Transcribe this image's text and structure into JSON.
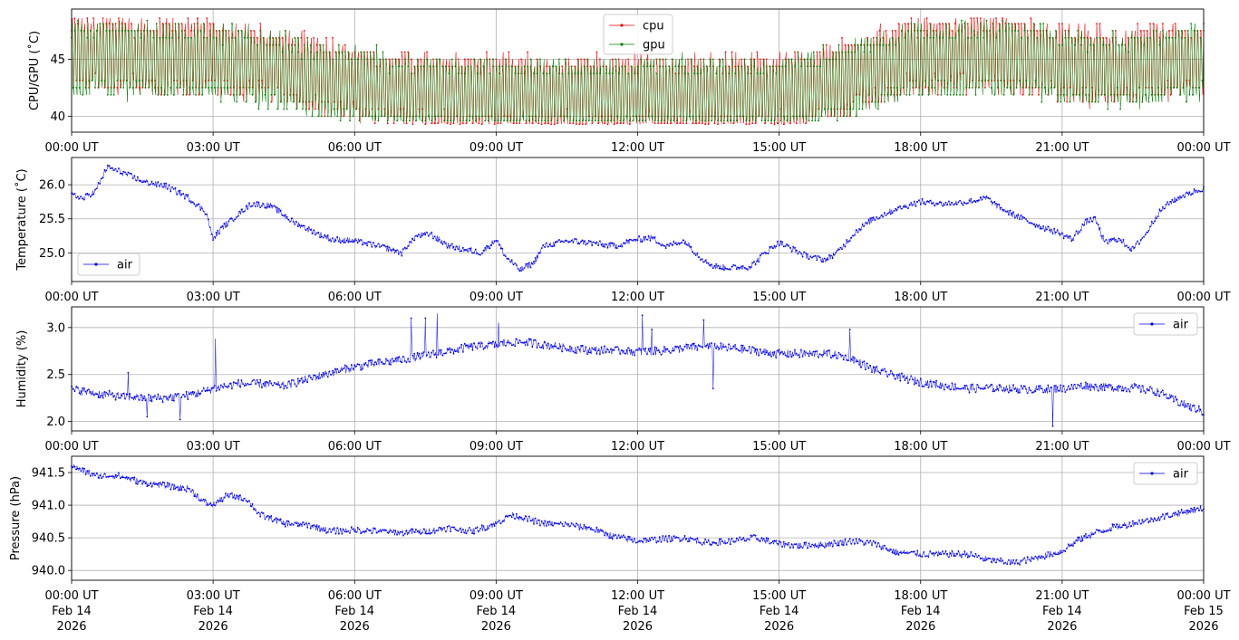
{
  "chart_data": [
    {
      "type": "line",
      "ylabel": "CPU/GPU (˚C)",
      "xlim": [
        "00:00 UT",
        "00:00 UT"
      ],
      "ylim": [
        38.6,
        49.4
      ],
      "yticks": [
        40,
        45
      ],
      "xticks": [
        "00:00 UT",
        "03:00 UT",
        "06:00 UT",
        "09:00 UT",
        "12:00 UT",
        "15:00 UT",
        "18:00 UT",
        "21:00 UT",
        "00:00 UT"
      ],
      "grid": true,
      "legend": "upper center",
      "series": [
        {
          "name": "cpu",
          "color": "#ff0000",
          "x_hours": [
            0,
            1,
            2,
            3,
            4,
            5,
            6,
            7,
            8,
            9,
            10,
            11,
            12,
            13,
            14,
            15,
            16,
            17,
            18,
            19,
            20,
            21,
            22,
            23,
            24
          ],
          "y_mean": [
            45.2,
            45.3,
            45.0,
            45.1,
            44.6,
            43.6,
            42.8,
            42.2,
            42.0,
            41.8,
            41.9,
            41.9,
            42.0,
            42.0,
            41.9,
            41.9,
            42.6,
            44.2,
            45.2,
            45.4,
            45.2,
            44.6,
            44.0,
            44.6,
            45.2
          ],
          "y_max": 48.6,
          "y_min": 39.3
        },
        {
          "name": "gpu",
          "color": "#008000",
          "x_hours": [
            0,
            1,
            2,
            3,
            4,
            5,
            6,
            7,
            8,
            9,
            10,
            11,
            12,
            13,
            14,
            15,
            16,
            17,
            18,
            19,
            20,
            21,
            22,
            23,
            24
          ],
          "y_mean": [
            45.0,
            45.0,
            44.8,
            44.8,
            44.3,
            43.4,
            42.7,
            42.1,
            41.9,
            41.7,
            41.8,
            41.8,
            41.9,
            41.9,
            41.8,
            41.8,
            42.5,
            44.0,
            44.9,
            45.1,
            45.0,
            44.4,
            43.9,
            44.4,
            45.0
          ],
          "y_max": 48.4,
          "y_min": 39.6
        }
      ]
    },
    {
      "type": "line",
      "ylabel": "Temperature (˚C)",
      "ylim": [
        24.58,
        26.4
      ],
      "yticks": [
        "25.0",
        "25.5",
        "26.0"
      ],
      "xticks": [
        "00:00 UT",
        "03:00 UT",
        "06:00 UT",
        "09:00 UT",
        "12:00 UT",
        "15:00 UT",
        "18:00 UT",
        "21:00 UT",
        "00:00 UT"
      ],
      "grid": true,
      "legend": "lower left",
      "series": [
        {
          "name": "air",
          "color": "#0000ff",
          "x_hours": [
            0,
            0.25,
            0.5,
            0.75,
            1,
            1.5,
            2,
            2.5,
            2.85,
            3.0,
            3.2,
            3.5,
            3.8,
            4.2,
            4.6,
            5,
            5.5,
            6,
            6.5,
            7,
            7.3,
            7.6,
            8,
            8.3,
            8.7,
            9,
            9.2,
            9.5,
            9.8,
            10,
            10.5,
            11,
            11.5,
            12,
            12.3,
            12.6,
            13,
            13.3,
            13.6,
            14,
            14.4,
            14.7,
            15,
            15.3,
            15.6,
            16,
            16.3,
            16.6,
            17,
            17.5,
            18,
            18.5,
            19,
            19.4,
            19.7,
            20,
            20.5,
            20.9,
            21.2,
            21.5,
            21.7,
            21.9,
            22.2,
            22.5,
            22.8,
            23.0,
            23.3,
            23.6,
            24
          ],
          "y": [
            25.85,
            25.8,
            25.9,
            26.25,
            26.2,
            26.05,
            25.98,
            25.8,
            25.6,
            25.2,
            25.38,
            25.55,
            25.72,
            25.7,
            25.5,
            25.35,
            25.2,
            25.18,
            25.1,
            25.0,
            25.25,
            25.28,
            25.1,
            25.05,
            25.0,
            25.2,
            24.95,
            24.75,
            24.85,
            25.1,
            25.18,
            25.15,
            25.1,
            25.2,
            25.22,
            25.1,
            25.18,
            24.95,
            24.8,
            24.78,
            24.8,
            25.0,
            25.15,
            25.05,
            24.95,
            24.9,
            25.05,
            25.3,
            25.5,
            25.65,
            25.75,
            25.72,
            25.75,
            25.8,
            25.65,
            25.55,
            25.4,
            25.3,
            25.2,
            25.45,
            25.5,
            25.15,
            25.2,
            25.05,
            25.3,
            25.55,
            25.75,
            25.85,
            25.95
          ]
        }
      ]
    },
    {
      "type": "line",
      "ylabel": "Humidity (%)",
      "ylim": [
        1.9,
        3.22
      ],
      "yticks": [
        "2.0",
        "2.5",
        "3.0"
      ],
      "xticks": [
        "00:00 UT",
        "03:00 UT",
        "06:00 UT",
        "09:00 UT",
        "12:00 UT",
        "15:00 UT",
        "18:00 UT",
        "21:00 UT",
        "00:00 UT"
      ],
      "grid": true,
      "legend": "upper right",
      "series": [
        {
          "name": "air",
          "color": "#0000ff",
          "x_hours": [
            0,
            0.5,
            1,
            1.5,
            2,
            2.5,
            3,
            3.5,
            4,
            4.5,
            5,
            5.5,
            6,
            6.5,
            7,
            7.5,
            8,
            8.5,
            9,
            9.5,
            10,
            10.5,
            11,
            11.5,
            12,
            12.5,
            13,
            13.5,
            14,
            14.5,
            15,
            15.5,
            16,
            16.5,
            17,
            17.5,
            18,
            18.5,
            19,
            19.5,
            20,
            20.5,
            21,
            21.5,
            22,
            22.5,
            23,
            23.5,
            24
          ],
          "y": [
            2.34,
            2.3,
            2.27,
            2.25,
            2.25,
            2.28,
            2.35,
            2.4,
            2.4,
            2.38,
            2.45,
            2.52,
            2.58,
            2.62,
            2.66,
            2.7,
            2.75,
            2.8,
            2.82,
            2.85,
            2.82,
            2.78,
            2.76,
            2.76,
            2.74,
            2.75,
            2.78,
            2.8,
            2.78,
            2.75,
            2.72,
            2.72,
            2.72,
            2.68,
            2.55,
            2.48,
            2.42,
            2.38,
            2.35,
            2.36,
            2.35,
            2.34,
            2.35,
            2.38,
            2.36,
            2.36,
            2.32,
            2.2,
            2.1
          ],
          "spikes": [
            [
              1.2,
              2.52
            ],
            [
              1.6,
              2.05
            ],
            [
              2.3,
              2.02
            ],
            [
              3.05,
              2.88
            ],
            [
              7.2,
              3.1
            ],
            [
              7.5,
              3.1
            ],
            [
              7.75,
              3.15
            ],
            [
              9.05,
              3.05
            ],
            [
              12.1,
              3.13
            ],
            [
              12.3,
              2.98
            ],
            [
              13.4,
              3.08
            ],
            [
              13.6,
              2.35
            ],
            [
              16.5,
              2.98
            ],
            [
              20.8,
              1.95
            ]
          ]
        }
      ]
    },
    {
      "type": "line",
      "ylabel": "Pressure (hPa)",
      "ylim": [
        939.85,
        941.75
      ],
      "yticks": [
        "940.0",
        "940.5",
        "941.0",
        "941.5"
      ],
      "xticks": [
        "00:00 UT\nFeb 14\n2026",
        "03:00 UT\nFeb 14\n2026",
        "06:00 UT\nFeb 14\n2026",
        "09:00 UT\nFeb 14\n2026",
        "12:00 UT\nFeb 14\n2026",
        "15:00 UT\nFeb 14\n2026",
        "18:00 UT\nFeb 14\n2026",
        "21:00 UT\nFeb 14\n2026",
        "00:00 UT\nFeb 15\n2026"
      ],
      "grid": true,
      "legend": "upper right",
      "series": [
        {
          "name": "air",
          "color": "#0000ff",
          "x_hours": [
            0,
            0.5,
            1,
            1.5,
            2,
            2.5,
            2.8,
            3.0,
            3.3,
            3.7,
            4,
            4.5,
            5,
            5.5,
            6,
            6.5,
            7,
            7.5,
            8,
            8.5,
            9,
            9.3,
            9.6,
            10,
            10.5,
            11,
            11.5,
            12,
            12.5,
            13,
            13.5,
            14,
            14.5,
            15,
            15.5,
            16,
            16.5,
            17,
            17.5,
            18,
            18.5,
            19,
            19.5,
            20,
            20.5,
            21,
            21.3,
            21.6,
            22,
            22.5,
            23,
            23.5,
            24
          ],
          "y": [
            941.6,
            941.45,
            941.45,
            941.35,
            941.3,
            941.25,
            941.05,
            941.0,
            941.15,
            941.1,
            940.85,
            940.72,
            940.7,
            940.6,
            940.62,
            940.6,
            940.58,
            940.6,
            940.65,
            940.6,
            940.72,
            940.85,
            940.8,
            940.72,
            940.7,
            940.65,
            940.52,
            940.45,
            940.48,
            940.5,
            940.42,
            940.45,
            940.5,
            940.4,
            940.38,
            940.4,
            940.45,
            940.42,
            940.28,
            940.25,
            940.25,
            940.25,
            940.15,
            940.12,
            940.2,
            940.3,
            940.45,
            940.55,
            940.65,
            940.72,
            940.8,
            940.88,
            940.95
          ]
        }
      ]
    }
  ]
}
